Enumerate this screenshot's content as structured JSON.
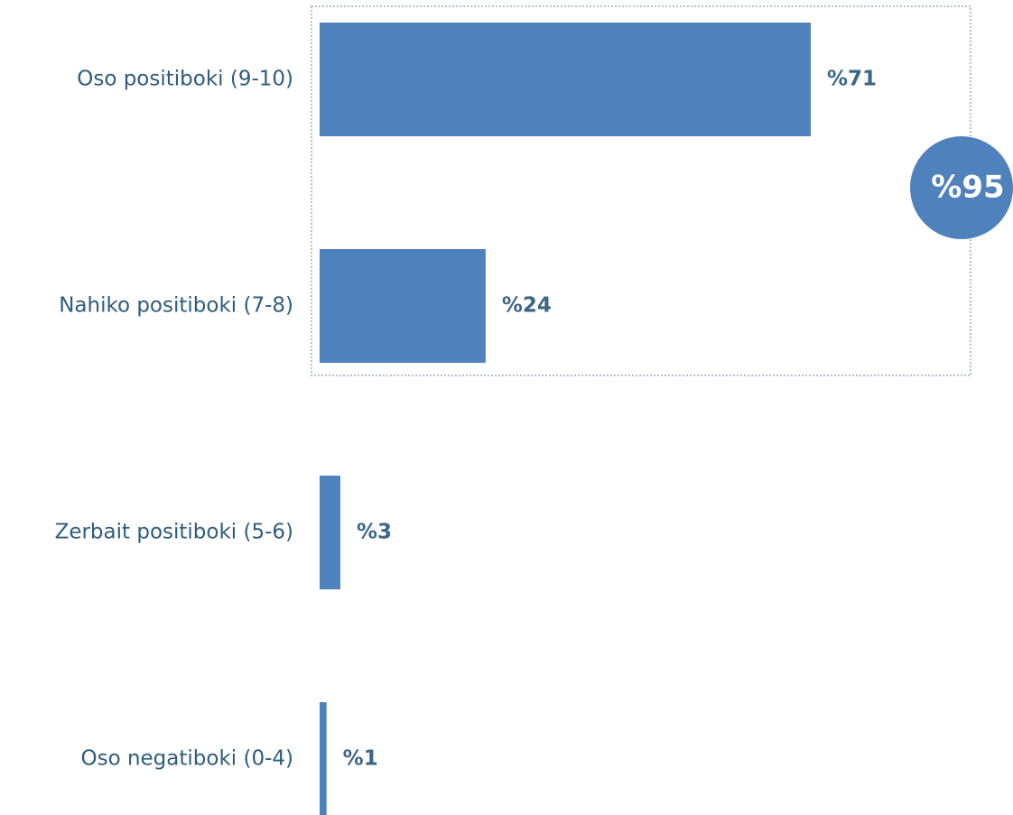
{
  "chart_data": {
    "type": "barh",
    "categories": [
      "Oso positiboki (9-10)",
      "Nahiko positiboki (7-8)",
      "Zerbait positiboki (5-6)",
      "Oso negatiboki (0-4)"
    ],
    "values": [
      71,
      24,
      3,
      1
    ],
    "value_labels": [
      "%71",
      "%24",
      "%3",
      "%1"
    ],
    "color": "#4f81bd",
    "annotation": "%95"
  }
}
